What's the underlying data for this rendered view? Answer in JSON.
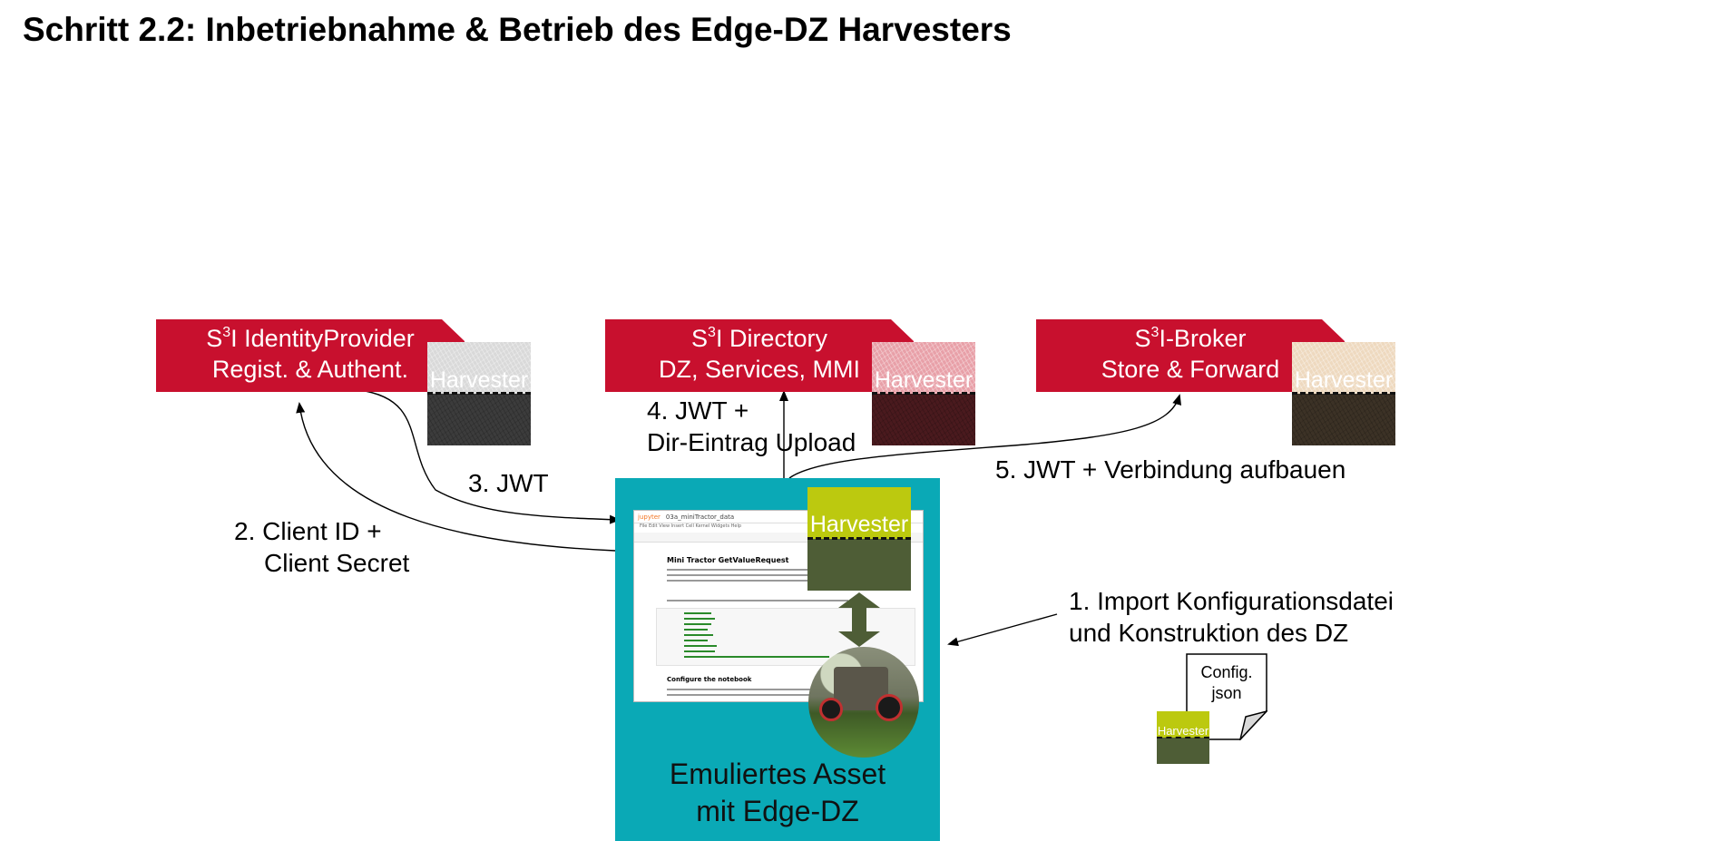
{
  "title": "Schritt 2.2: Inbetriebnahme & Betrieb des Edge-DZ Harvesters",
  "colors": {
    "tab_red": "#c8102e",
    "asset_teal": "#0aa9b6",
    "harvester_lime": "#bcc90f",
    "harvester_olive": "#4e5d36"
  },
  "services": [
    {
      "prefix": "S",
      "sup": "3",
      "name": "I IdentityProvider",
      "subtitle": "Regist. & Authent.",
      "harvester_label": "Harvester"
    },
    {
      "prefix": "S",
      "sup": "3",
      "name": "I Directory",
      "subtitle": "DZ, Services, MMI",
      "harvester_label": "Harvester"
    },
    {
      "prefix": "S",
      "sup": "3",
      "name": "I-Broker",
      "subtitle": "Store & Forward",
      "harvester_label": "Harvester"
    }
  ],
  "steps": {
    "step1_line1": "1. Import Konfigurationsdatei",
    "step1_line2": "und Konstruktion des DZ",
    "step2_line1": "2. Client ID +",
    "step2_line2": "Client Secret",
    "step3": "3. JWT",
    "step4_line1": "4. JWT +",
    "step4_line2": "Dir-Eintrag Upload",
    "step5": "5. JWT + Verbindung aufbauen"
  },
  "asset": {
    "caption_line1": "Emuliertes Asset",
    "caption_line2": "mit Edge-DZ",
    "harvester_label": "Harvester",
    "notebook": {
      "app": "jupyter",
      "filename": "03a_miniTractor_data",
      "menu": "File   Edit   View   Insert   Cell   Kernel   Widgets   Help",
      "heading1": "Mini Tractor GetValueRequest",
      "heading2": "Configure the notebook"
    }
  },
  "config_file": {
    "line1": "Config.",
    "line2": "json",
    "harvester_label": "Harvester"
  }
}
